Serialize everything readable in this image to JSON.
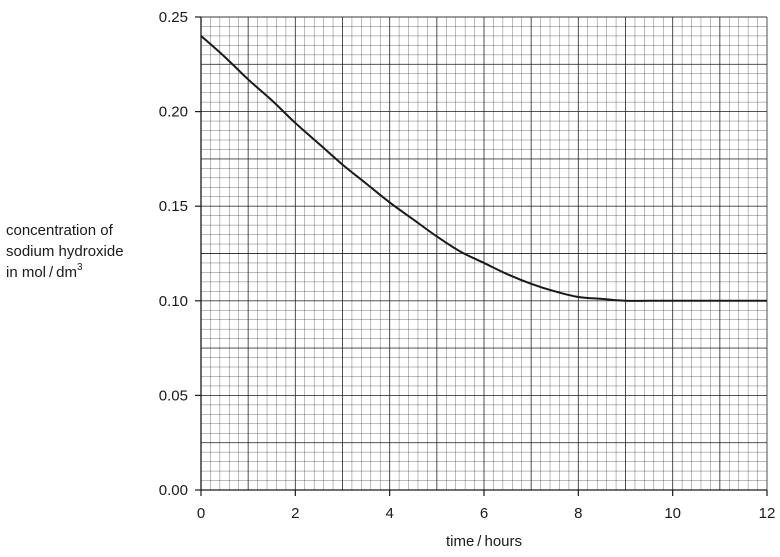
{
  "chart_data": {
    "type": "line",
    "title": "",
    "xlabel": "time / hours",
    "ylabel_lines": [
      "concentration of",
      "sodium hydroxide",
      "in mol / dm"
    ],
    "ylabel_superscript": "3",
    "xlim": [
      0,
      12
    ],
    "ylim": [
      0,
      0.25
    ],
    "x_ticks": [
      0,
      2,
      4,
      6,
      8,
      10,
      12
    ],
    "x_tick_labels": [
      "0",
      "2",
      "4",
      "6",
      "8",
      "10",
      "12"
    ],
    "y_ticks": [
      0,
      0.05,
      0.1,
      0.15,
      0.2,
      0.25
    ],
    "y_tick_labels": [
      "0.00",
      "0.05",
      "0.10",
      "0.15",
      "0.20",
      "0.25"
    ],
    "grid": true,
    "series": [
      {
        "x": [
          0,
          0.5,
          1,
          1.5,
          2,
          2.5,
          3,
          3.5,
          4,
          4.5,
          5,
          5.5,
          6,
          6.5,
          7,
          7.5,
          8,
          8.5,
          9,
          9.5,
          10,
          11,
          12
        ],
        "y": [
          0.24,
          0.229,
          0.217,
          0.206,
          0.194,
          0.183,
          0.172,
          0.162,
          0.152,
          0.143,
          0.134,
          0.126,
          0.12,
          0.114,
          0.109,
          0.105,
          0.102,
          0.101,
          0.1,
          0.1,
          0.1,
          0.1,
          0.1
        ]
      }
    ],
    "colors": {
      "line": "#1a1a1a",
      "grid": "#1a1a1a"
    }
  }
}
